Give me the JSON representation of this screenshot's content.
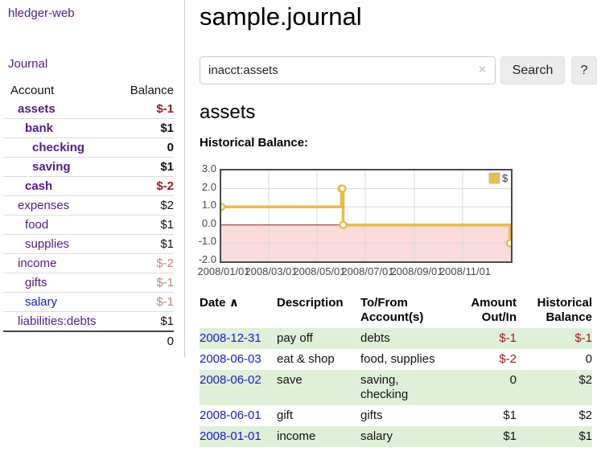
{
  "sidebar": {
    "brand": "hledger-web",
    "journal_link": "Journal",
    "accounts_table": {
      "headers": {
        "account": "Account",
        "balance": "Balance"
      },
      "rows": [
        {
          "name": "assets",
          "balance": "$-1",
          "depth": 1,
          "bold": true,
          "balance_style": "neg-strong",
          "link_style": "purple"
        },
        {
          "name": "bank",
          "balance": "$1",
          "depth": 2,
          "bold": true,
          "balance_style": "pos",
          "link_style": "purple"
        },
        {
          "name": "checking",
          "balance": "0",
          "depth": 3,
          "bold": true,
          "balance_style": "pos",
          "link_style": "purple"
        },
        {
          "name": "saving",
          "balance": "$1",
          "depth": 3,
          "bold": true,
          "balance_style": "pos",
          "link_style": "purple"
        },
        {
          "name": "cash",
          "balance": "$-2",
          "depth": 2,
          "bold": true,
          "balance_style": "neg-strong",
          "link_style": "purple"
        },
        {
          "name": "expenses",
          "balance": "$2",
          "depth": 1,
          "bold": false,
          "balance_style": "pos",
          "link_style": "purple"
        },
        {
          "name": "food",
          "balance": "$1",
          "depth": 2,
          "bold": false,
          "balance_style": "pos",
          "link_style": "purple"
        },
        {
          "name": "supplies",
          "balance": "$1",
          "depth": 2,
          "bold": false,
          "balance_style": "pos",
          "link_style": "purple"
        },
        {
          "name": "income",
          "balance": "$-2",
          "depth": 1,
          "bold": false,
          "balance_style": "neg-muted",
          "link_style": "purple"
        },
        {
          "name": "gifts",
          "balance": "$-1",
          "depth": 2,
          "bold": false,
          "balance_style": "neg-muted",
          "link_style": "purple"
        },
        {
          "name": "salary",
          "balance": "$-1",
          "depth": 2,
          "bold": false,
          "balance_style": "neg-muted",
          "link_style": "blue"
        },
        {
          "name": "liabilities:debts",
          "balance": "$1",
          "depth": 1,
          "bold": false,
          "balance_style": "pos",
          "link_style": "purple"
        }
      ],
      "total": "0"
    }
  },
  "header": {
    "title": "sample.journal"
  },
  "search": {
    "value": "inacct:assets",
    "clear_icon": "×",
    "search_label": "Search",
    "help_label": "?"
  },
  "account_page": {
    "title": "assets",
    "chart_label": "Historical Balance:"
  },
  "chart_data": {
    "type": "line",
    "title": "Historical Balance:",
    "series": [
      {
        "name": "$",
        "color": "#e7bd46",
        "step": true,
        "points": [
          [
            "2008-01-01",
            1
          ],
          [
            "2008-06-01",
            2
          ],
          [
            "2008-06-02",
            2
          ],
          [
            "2008-06-03",
            0
          ],
          [
            "2008-12-31",
            -1
          ]
        ]
      }
    ],
    "x_ticks": [
      "2008/01/01",
      "2008/03/01",
      "2008/05/01",
      "2008/07/01",
      "2008/09/01",
      "2008/11/01"
    ],
    "y_ticks": [
      "3.0",
      "2.0",
      "1.0",
      "0.0",
      "-1.0",
      "-2.0"
    ],
    "ylim": [
      -2,
      3
    ],
    "xlim": [
      "2008-01-01",
      "2009-01-01"
    ],
    "grid": true,
    "legend": {
      "label": "$",
      "position": "top-right"
    },
    "colors": {
      "negative_region": "#f9dbdb",
      "zero_line": "#8b1c1c",
      "grid": "#d8d8d8",
      "border": "#4a4a4a",
      "line": "#e7bd46",
      "marker_fill": "#ffffff",
      "legend_fill": "#eabf45",
      "legend_border": "#bbbbbb"
    }
  },
  "register_table": {
    "headers": {
      "date": "Date",
      "sort_arrow": "∧",
      "description": "Description",
      "accounts": "To/From Account(s)",
      "amount": "Amount Out/In",
      "balance": "Historical Balance"
    },
    "rows": [
      {
        "date": "2008-12-31",
        "description": "pay off",
        "accounts": "debts",
        "amount": "$-1",
        "amount_neg": true,
        "balance": "$-1",
        "balance_neg": true
      },
      {
        "date": "2008-06-03",
        "description": "eat & shop",
        "accounts": "food, supplies",
        "amount": "$-2",
        "amount_neg": true,
        "balance": "0",
        "balance_neg": false
      },
      {
        "date": "2008-06-02",
        "description": "save",
        "accounts": "saving, checking",
        "amount": "0",
        "amount_neg": false,
        "balance": "$2",
        "balance_neg": false
      },
      {
        "date": "2008-06-01",
        "description": "gift",
        "accounts": "gifts",
        "amount": "$1",
        "amount_neg": false,
        "balance": "$2",
        "balance_neg": false
      },
      {
        "date": "2008-01-01",
        "description": "income",
        "accounts": "salary",
        "amount": "$1",
        "amount_neg": false,
        "balance": "$1",
        "balance_neg": false
      }
    ]
  }
}
